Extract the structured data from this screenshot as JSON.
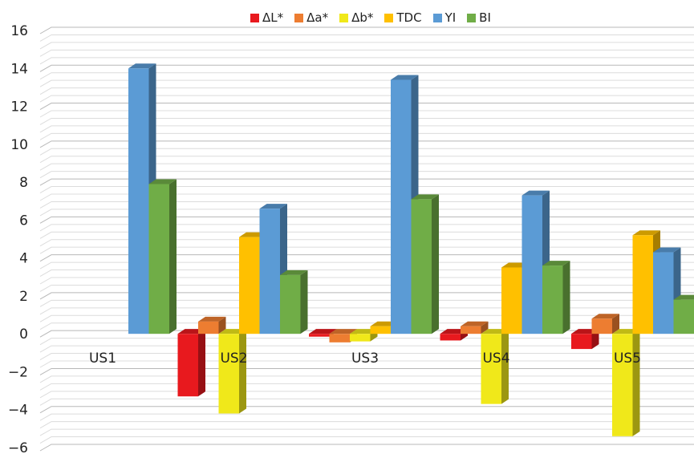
{
  "chart_data": {
    "type": "bar",
    "title": "",
    "xlabel": "",
    "ylabel": "",
    "ylim": [
      -6,
      16
    ],
    "yticks": [
      "16",
      "14",
      "12",
      "10",
      "8",
      "6",
      "4",
      "2",
      "0",
      "−2",
      "−4",
      "−6"
    ],
    "categories": [
      "US1",
      "US2",
      "US3",
      "US4",
      "US5"
    ],
    "legend_position": "top",
    "grid": true,
    "series": [
      {
        "name": "ΔL*",
        "color": "#e8191e",
        "values": [
          0,
          -3.3,
          -0.15,
          -0.35,
          -0.8
        ]
      },
      {
        "name": "Δa*",
        "color": "#ed7d31",
        "values": [
          0,
          0.65,
          -0.45,
          0.4,
          0.8
        ]
      },
      {
        "name": "Δb*",
        "color": "#f0e81a",
        "values": [
          0,
          -4.2,
          -0.4,
          -3.7,
          -5.4
        ]
      },
      {
        "name": "TDC",
        "color": "#ffc000",
        "values": [
          0,
          5.1,
          0.4,
          3.5,
          5.2
        ]
      },
      {
        "name": "YI",
        "color": "#5b9bd5",
        "values": [
          14.0,
          6.6,
          13.4,
          7.3,
          4.3
        ]
      },
      {
        "name": "BI",
        "color": "#70ad47",
        "values": [
          7.9,
          3.1,
          7.1,
          3.6,
          1.8
        ]
      }
    ]
  }
}
